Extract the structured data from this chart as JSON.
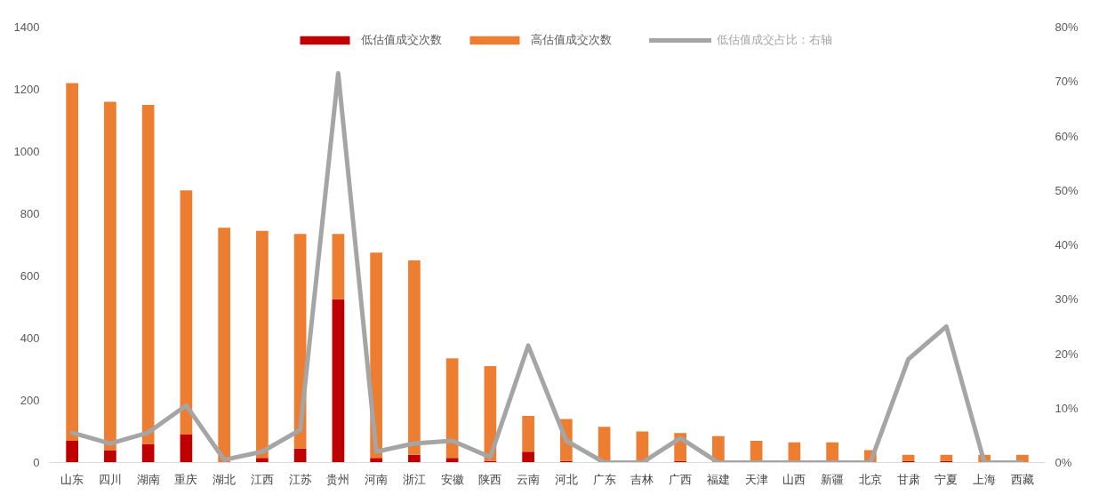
{
  "chart_data": {
    "type": "bar",
    "stacked": true,
    "categories": [
      "山东",
      "四川",
      "湖南",
      "重庆",
      "湖北",
      "江西",
      "江苏",
      "贵州",
      "河南",
      "浙江",
      "安徽",
      "陕西",
      "云南",
      "河北",
      "广东",
      "吉林",
      "广西",
      "福建",
      "天津",
      "山西",
      "新疆",
      "北京",
      "甘肃",
      "宁夏",
      "上海",
      "西藏"
    ],
    "series": [
      {
        "name": "低估值成交次数",
        "color": "#c00000",
        "values": [
          70,
          40,
          60,
          90,
          null,
          15,
          45,
          525,
          15,
          25,
          15,
          5,
          35,
          5,
          0,
          0,
          5,
          0,
          0,
          0,
          0,
          0,
          5,
          5,
          0,
          0
        ]
      },
      {
        "name": "高估值成交次数",
        "color": "#ed7d31",
        "values": [
          1150,
          1120,
          1090,
          785,
          755,
          730,
          690,
          210,
          660,
          625,
          320,
          305,
          115,
          135,
          115,
          100,
          90,
          85,
          70,
          65,
          65,
          40,
          20,
          20,
          25,
          25
        ]
      },
      {
        "name": "低估值成交占比：右轴",
        "color": "#a5a5a5",
        "type": "line",
        "axis": "y2",
        "values": [
          5.5,
          3.5,
          5.5,
          10.5,
          0.5,
          2,
          6,
          71.5,
          2,
          3.5,
          4,
          1,
          21.5,
          4,
          0,
          0,
          4.5,
          0,
          0,
          0,
          0,
          0,
          19,
          25,
          0,
          0
        ]
      }
    ],
    "ylim": [
      0,
      1400
    ],
    "yticks": [
      0,
      200,
      400,
      600,
      800,
      1000,
      1200,
      1400
    ],
    "y2lim": [
      0,
      80
    ],
    "y2ticks": [
      {
        "value": 0,
        "label": "0%"
      },
      {
        "value": 10,
        "label": "10%"
      },
      {
        "value": 20,
        "label": "20%"
      },
      {
        "value": 30,
        "label": "30%"
      },
      {
        "value": 40,
        "label": "40%"
      },
      {
        "value": 50,
        "label": "50%"
      },
      {
        "value": 60,
        "label": "60%"
      },
      {
        "value": 70,
        "label": "70%"
      },
      {
        "value": 80,
        "label": "80%"
      }
    ],
    "grid": false,
    "legend": "top"
  }
}
